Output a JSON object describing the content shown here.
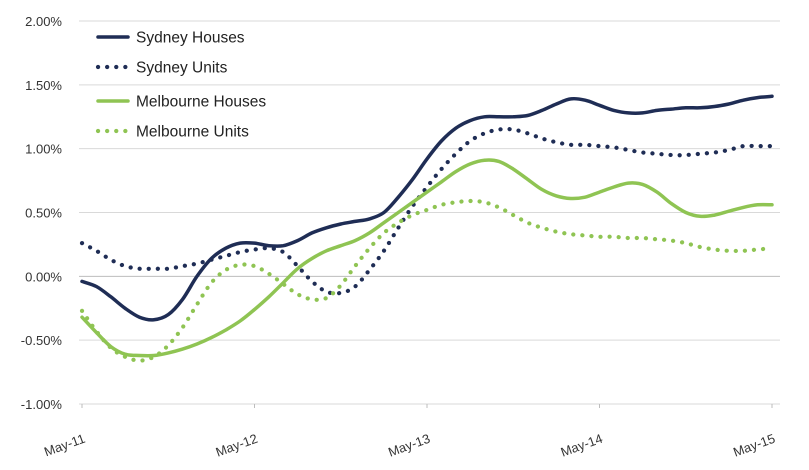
{
  "chart_data": {
    "type": "line",
    "title": "",
    "xlabel": "",
    "ylabel": "",
    "x_dates": [
      "2011-05",
      "2011-06",
      "2011-07",
      "2011-08",
      "2011-09",
      "2011-10",
      "2011-11",
      "2011-12",
      "2012-01",
      "2012-02",
      "2012-03",
      "2012-04",
      "2012-05",
      "2012-06",
      "2012-07",
      "2012-08",
      "2012-09",
      "2012-10",
      "2012-11",
      "2012-12",
      "2013-01",
      "2013-02",
      "2013-03",
      "2013-04",
      "2013-05",
      "2013-06",
      "2013-07",
      "2013-08",
      "2013-09",
      "2013-10",
      "2013-11",
      "2013-12",
      "2014-01",
      "2014-02",
      "2014-03",
      "2014-04",
      "2014-05",
      "2014-06",
      "2014-07",
      "2014-08",
      "2014-09",
      "2014-10",
      "2014-11",
      "2014-12",
      "2015-01",
      "2015-02",
      "2015-03",
      "2015-04",
      "2015-05"
    ],
    "x_tick_labels": [
      "May-11",
      "May-12",
      "May-13",
      "May-14",
      "May-15"
    ],
    "y_ticks": [
      -1.0,
      -0.5,
      0.0,
      0.5,
      1.0,
      1.5,
      2.0
    ],
    "y_tick_labels": [
      "-1.00%",
      "-0.50%",
      "0.00%",
      "0.50%",
      "1.00%",
      "1.50%",
      "2.00%"
    ],
    "ylim": [
      -1.0,
      2.0
    ],
    "grid": "horizontal",
    "legend_position": "top-left",
    "series": [
      {
        "name": "Sydney Houses",
        "color": "#1f2d55",
        "style": "solid",
        "values": [
          -0.04,
          -0.08,
          -0.16,
          -0.25,
          -0.32,
          -0.34,
          -0.3,
          -0.18,
          0.0,
          0.14,
          0.22,
          0.26,
          0.26,
          0.24,
          0.24,
          0.28,
          0.34,
          0.38,
          0.41,
          0.43,
          0.45,
          0.5,
          0.62,
          0.76,
          0.92,
          1.06,
          1.16,
          1.22,
          1.25,
          1.25,
          1.25,
          1.26,
          1.3,
          1.35,
          1.39,
          1.38,
          1.34,
          1.3,
          1.28,
          1.28,
          1.3,
          1.31,
          1.32,
          1.32,
          1.33,
          1.35,
          1.38,
          1.4,
          1.41
        ]
      },
      {
        "name": "Sydney Units",
        "color": "#1f2d55",
        "style": "dotted",
        "values": [
          0.26,
          0.2,
          0.13,
          0.08,
          0.06,
          0.06,
          0.06,
          0.08,
          0.1,
          0.13,
          0.16,
          0.19,
          0.21,
          0.22,
          0.19,
          0.08,
          -0.04,
          -0.12,
          -0.13,
          -0.08,
          0.05,
          0.2,
          0.38,
          0.55,
          0.7,
          0.84,
          0.96,
          1.06,
          1.12,
          1.15,
          1.15,
          1.12,
          1.08,
          1.05,
          1.03,
          1.03,
          1.02,
          1.01,
          0.99,
          0.97,
          0.96,
          0.95,
          0.95,
          0.96,
          0.97,
          0.99,
          1.02,
          1.02,
          1.02
        ]
      },
      {
        "name": "Melbourne Houses",
        "color": "#8fc453",
        "style": "solid",
        "values": [
          -0.32,
          -0.44,
          -0.55,
          -0.61,
          -0.62,
          -0.62,
          -0.6,
          -0.57,
          -0.53,
          -0.48,
          -0.42,
          -0.35,
          -0.26,
          -0.16,
          -0.05,
          0.06,
          0.14,
          0.2,
          0.24,
          0.28,
          0.34,
          0.42,
          0.5,
          0.58,
          0.66,
          0.74,
          0.82,
          0.88,
          0.91,
          0.9,
          0.84,
          0.76,
          0.68,
          0.63,
          0.61,
          0.62,
          0.66,
          0.7,
          0.73,
          0.72,
          0.66,
          0.57,
          0.5,
          0.47,
          0.48,
          0.51,
          0.54,
          0.56,
          0.56
        ]
      },
      {
        "name": "Melbourne Units",
        "color": "#8fc453",
        "style": "dotted",
        "values": [
          -0.27,
          -0.43,
          -0.56,
          -0.63,
          -0.66,
          -0.63,
          -0.54,
          -0.4,
          -0.22,
          -0.05,
          0.05,
          0.09,
          0.08,
          0.02,
          -0.06,
          -0.14,
          -0.18,
          -0.17,
          -0.07,
          0.08,
          0.22,
          0.34,
          0.42,
          0.48,
          0.52,
          0.56,
          0.58,
          0.59,
          0.58,
          0.54,
          0.48,
          0.42,
          0.38,
          0.35,
          0.33,
          0.32,
          0.31,
          0.31,
          0.3,
          0.3,
          0.29,
          0.28,
          0.26,
          0.23,
          0.21,
          0.2,
          0.2,
          0.21,
          0.22
        ]
      }
    ]
  }
}
